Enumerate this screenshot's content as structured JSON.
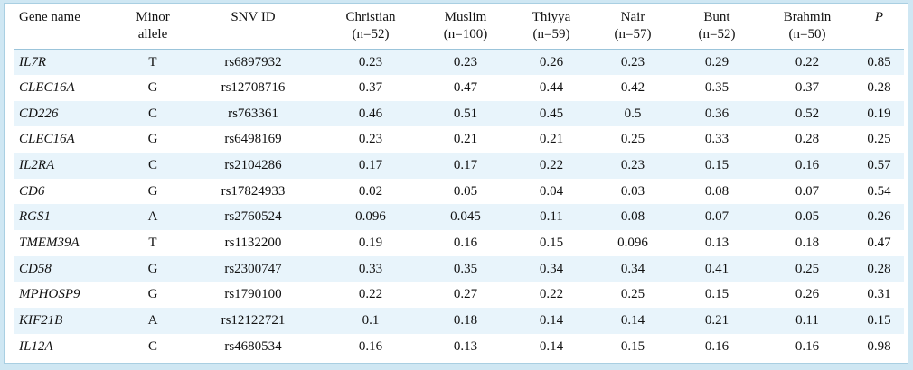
{
  "columns": [
    {
      "line1": "Gene name",
      "line2": ""
    },
    {
      "line1": "Minor",
      "line2": "allele"
    },
    {
      "line1": "SNV ID",
      "line2": ""
    },
    {
      "line1": "Christian",
      "line2": "(n=52)"
    },
    {
      "line1": "Muslim",
      "line2": "(n=100)"
    },
    {
      "line1": "Thiyya",
      "line2": "(n=59)"
    },
    {
      "line1": "Nair",
      "line2": "(n=57)"
    },
    {
      "line1": "Bunt",
      "line2": "(n=52)"
    },
    {
      "line1": "Brahmin",
      "line2": "(n=50)"
    },
    {
      "line1": "P",
      "line2": ""
    }
  ],
  "rows": [
    [
      "IL7R",
      "T",
      "rs6897932",
      "0.23",
      "0.23",
      "0.26",
      "0.23",
      "0.29",
      "0.22",
      "0.85"
    ],
    [
      "CLEC16A",
      "G",
      "rs12708716",
      "0.37",
      "0.47",
      "0.44",
      "0.42",
      "0.35",
      "0.37",
      "0.28"
    ],
    [
      "CD226",
      "C",
      "rs763361",
      "0.46",
      "0.51",
      "0.45",
      "0.5",
      "0.36",
      "0.52",
      "0.19"
    ],
    [
      "CLEC16A",
      "G",
      "rs6498169",
      "0.23",
      "0.21",
      "0.21",
      "0.25",
      "0.33",
      "0.28",
      "0.25"
    ],
    [
      "IL2RA",
      "C",
      "rs2104286",
      "0.17",
      "0.17",
      "0.22",
      "0.23",
      "0.15",
      "0.16",
      "0.57"
    ],
    [
      "CD6",
      "G",
      "rs17824933",
      "0.02",
      "0.05",
      "0.04",
      "0.03",
      "0.08",
      "0.07",
      "0.54"
    ],
    [
      "RGS1",
      "A",
      "rs2760524",
      "0.096",
      "0.045",
      "0.11",
      "0.08",
      "0.07",
      "0.05",
      "0.26"
    ],
    [
      "TMEM39A",
      "T",
      "rs1132200",
      "0.19",
      "0.16",
      "0.15",
      "0.096",
      "0.13",
      "0.18",
      "0.47"
    ],
    [
      "CD58",
      "G",
      "rs2300747",
      "0.33",
      "0.35",
      "0.34",
      "0.34",
      "0.41",
      "0.25",
      "0.28"
    ],
    [
      "MPHOSP9",
      "G",
      "rs1790100",
      "0.22",
      "0.27",
      "0.22",
      "0.25",
      "0.15",
      "0.26",
      "0.31"
    ],
    [
      "KIF21B",
      "A",
      "rs12122721",
      "0.1",
      "0.18",
      "0.14",
      "0.14",
      "0.21",
      "0.11",
      "0.15"
    ],
    [
      "IL12A",
      "C",
      "rs4680534",
      "0.16",
      "0.13",
      "0.14",
      "0.15",
      "0.16",
      "0.16",
      "0.98"
    ]
  ]
}
